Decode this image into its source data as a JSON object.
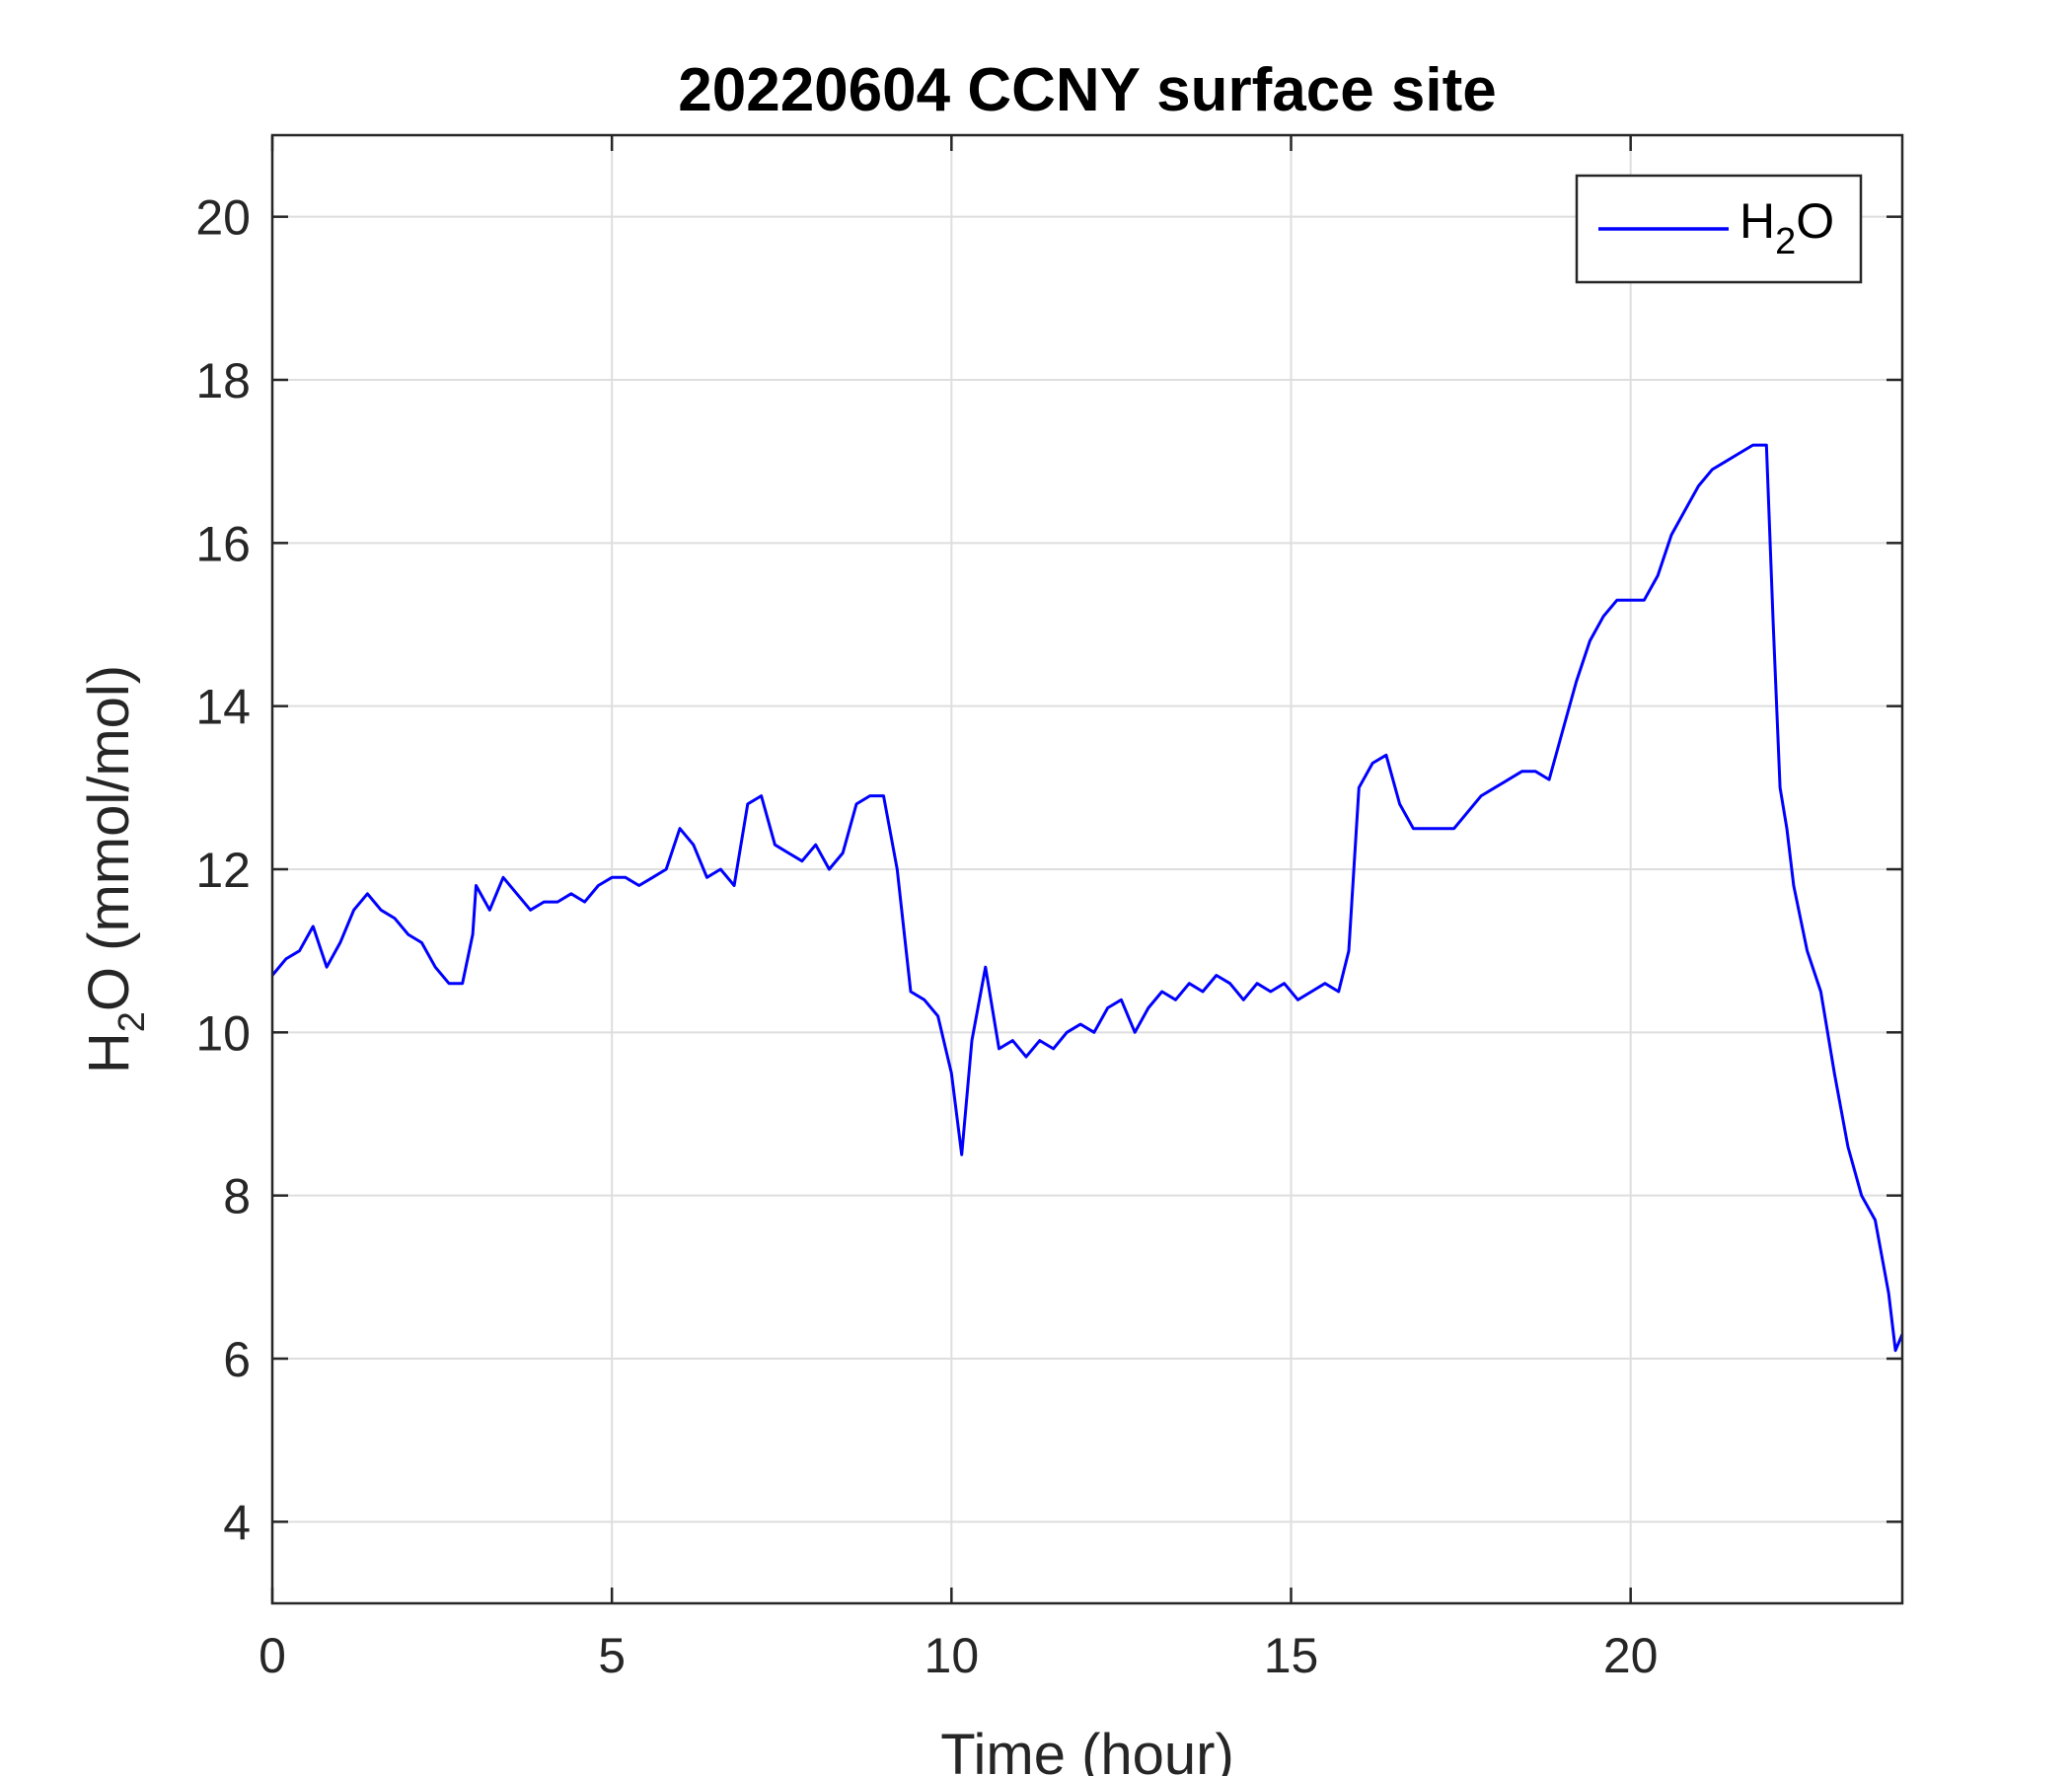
{
  "chart_data": {
    "type": "line",
    "title": "20220604 CCNY surface site",
    "xlabel": "Time (hour)",
    "ylabel_main": "H",
    "ylabel_sub": "2",
    "ylabel_rest": "O (mmol/mol)",
    "xlim": [
      0,
      24
    ],
    "ylim": [
      3,
      21
    ],
    "xticks": [
      0,
      5,
      10,
      15,
      20
    ],
    "yticks": [
      4,
      6,
      8,
      10,
      12,
      14,
      16,
      18,
      20
    ],
    "grid": true,
    "legend_position": "top-right",
    "series": [
      {
        "name_main": "H",
        "name_sub": "2",
        "name_rest": "O",
        "color": "#0000ff",
        "x": [
          0.0,
          0.2,
          0.4,
          0.6,
          0.8,
          1.0,
          1.2,
          1.4,
          1.6,
          1.8,
          2.0,
          2.2,
          2.4,
          2.6,
          2.8,
          2.95,
          3.0,
          3.2,
          3.4,
          3.6,
          3.8,
          4.0,
          4.2,
          4.4,
          4.6,
          4.8,
          5.0,
          5.2,
          5.4,
          5.6,
          5.8,
          6.0,
          6.2,
          6.4,
          6.6,
          6.8,
          7.0,
          7.2,
          7.4,
          7.6,
          7.8,
          8.0,
          8.2,
          8.4,
          8.6,
          8.8,
          9.0,
          9.2,
          9.4,
          9.6,
          9.8,
          10.0,
          10.15,
          10.3,
          10.5,
          10.7,
          10.9,
          11.1,
          11.3,
          11.5,
          11.7,
          11.9,
          12.1,
          12.3,
          12.5,
          12.7,
          12.9,
          13.1,
          13.3,
          13.5,
          13.7,
          13.9,
          14.1,
          14.3,
          14.5,
          14.7,
          14.9,
          15.1,
          15.3,
          15.5,
          15.7,
          15.85,
          16.0,
          16.2,
          16.4,
          16.6,
          16.8,
          17.0,
          17.2,
          17.4,
          17.6,
          17.8,
          18.0,
          18.2,
          18.4,
          18.6,
          18.8,
          19.0,
          19.2,
          19.4,
          19.6,
          19.8,
          20.0,
          20.2,
          20.4,
          20.6,
          20.8,
          21.0,
          21.2,
          21.4,
          21.6,
          21.8,
          22.0,
          22.1,
          22.2,
          22.3,
          22.4,
          22.6,
          22.8,
          23.0,
          23.2,
          23.4,
          23.6,
          23.8,
          23.9,
          24.0
        ],
        "y": [
          10.7,
          10.9,
          11.0,
          11.3,
          10.8,
          11.1,
          11.5,
          11.7,
          11.5,
          11.4,
          11.2,
          11.1,
          10.8,
          10.6,
          10.6,
          11.2,
          11.8,
          11.5,
          11.9,
          11.7,
          11.5,
          11.6,
          11.6,
          11.7,
          11.6,
          11.8,
          11.9,
          11.9,
          11.8,
          11.9,
          12.0,
          12.5,
          12.3,
          11.9,
          12.0,
          11.8,
          12.8,
          12.9,
          12.3,
          12.2,
          12.1,
          12.3,
          12.0,
          12.2,
          12.8,
          12.9,
          12.9,
          12.0,
          10.5,
          10.4,
          10.2,
          9.5,
          8.5,
          9.9,
          10.8,
          9.8,
          9.9,
          9.7,
          9.9,
          9.8,
          10.0,
          10.1,
          10.0,
          10.3,
          10.4,
          10.0,
          10.3,
          10.5,
          10.4,
          10.6,
          10.5,
          10.7,
          10.6,
          10.4,
          10.6,
          10.5,
          10.6,
          10.4,
          10.5,
          10.6,
          10.5,
          11.0,
          13.0,
          13.3,
          13.4,
          12.8,
          12.5,
          12.5,
          12.5,
          12.5,
          12.7,
          12.9,
          13.0,
          13.1,
          13.2,
          13.2,
          13.1,
          13.7,
          14.3,
          14.8,
          15.1,
          15.3,
          15.3,
          15.3,
          15.6,
          16.1,
          16.4,
          16.7,
          16.9,
          17.0,
          17.1,
          17.2,
          17.2,
          15.0,
          13.0,
          12.5,
          11.8,
          11.0,
          10.5,
          9.5,
          8.6,
          8.0,
          7.7,
          6.8,
          6.1,
          6.3
        ]
      }
    ]
  }
}
